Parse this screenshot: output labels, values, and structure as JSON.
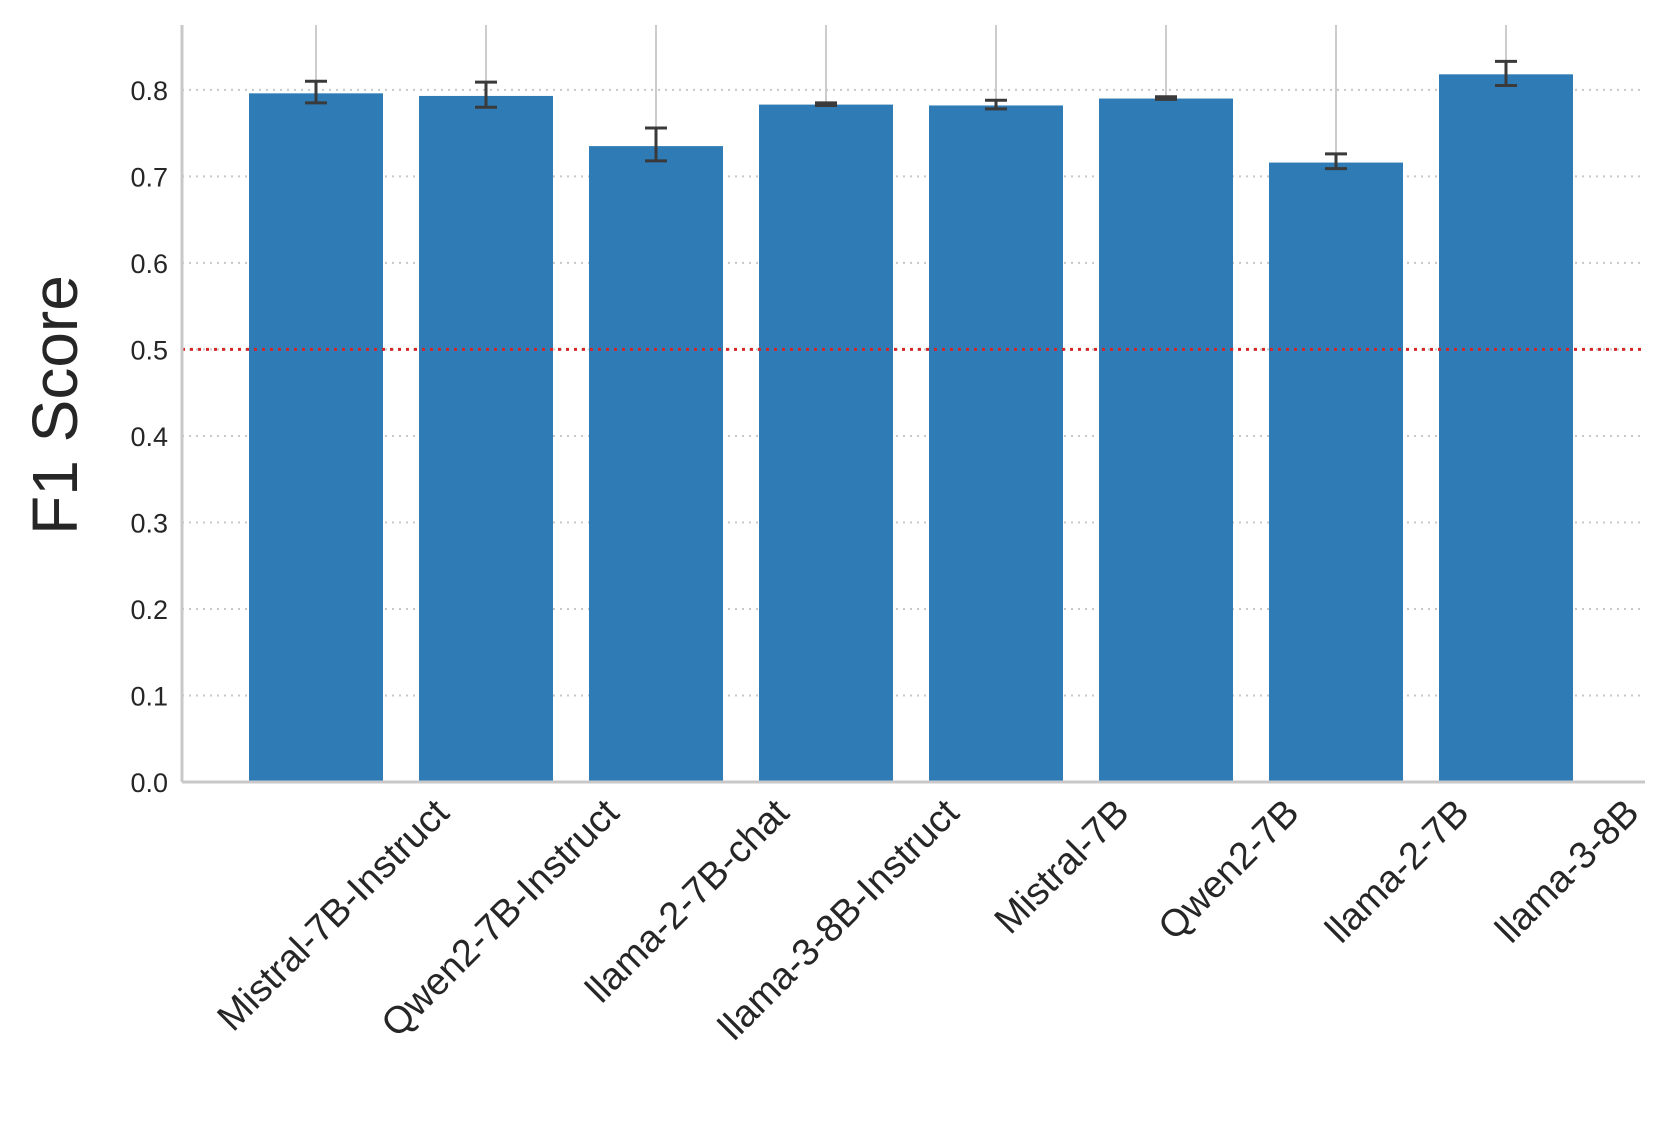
{
  "chart_data": {
    "type": "bar",
    "title": "",
    "xlabel": "",
    "ylabel": "F1 Score",
    "categories": [
      "Mistral-7B-Instruct",
      "Qwen2-7B-Instruct",
      "llama-2-7B-chat",
      "llama-3-8B-Instruct",
      "Mistral-7B",
      "Qwen2-7B",
      "llama-2-7B",
      "llama-3-8B"
    ],
    "values": [
      0.796,
      0.793,
      0.735,
      0.783,
      0.782,
      0.79,
      0.716,
      0.818
    ],
    "error_low": [
      0.785,
      0.78,
      0.718,
      0.782,
      0.778,
      0.789,
      0.709,
      0.805
    ],
    "error_high": [
      0.81,
      0.809,
      0.756,
      0.785,
      0.788,
      0.792,
      0.726,
      0.833
    ],
    "y_ticks": [
      "0.0",
      "0.1",
      "0.2",
      "0.3",
      "0.4",
      "0.5",
      "0.6",
      "0.7",
      "0.8"
    ],
    "ylim": [
      0,
      0.875
    ],
    "reference_line": 0.5,
    "grid": "horizontal dotted",
    "colors": {
      "bar": "#2e7bb6",
      "error_bar": "#3a3a3a",
      "reference_line": "#d62728",
      "grid": "#c8c8c8",
      "x_gridline": "#cccccc",
      "axis": "#c8c8c8"
    }
  }
}
